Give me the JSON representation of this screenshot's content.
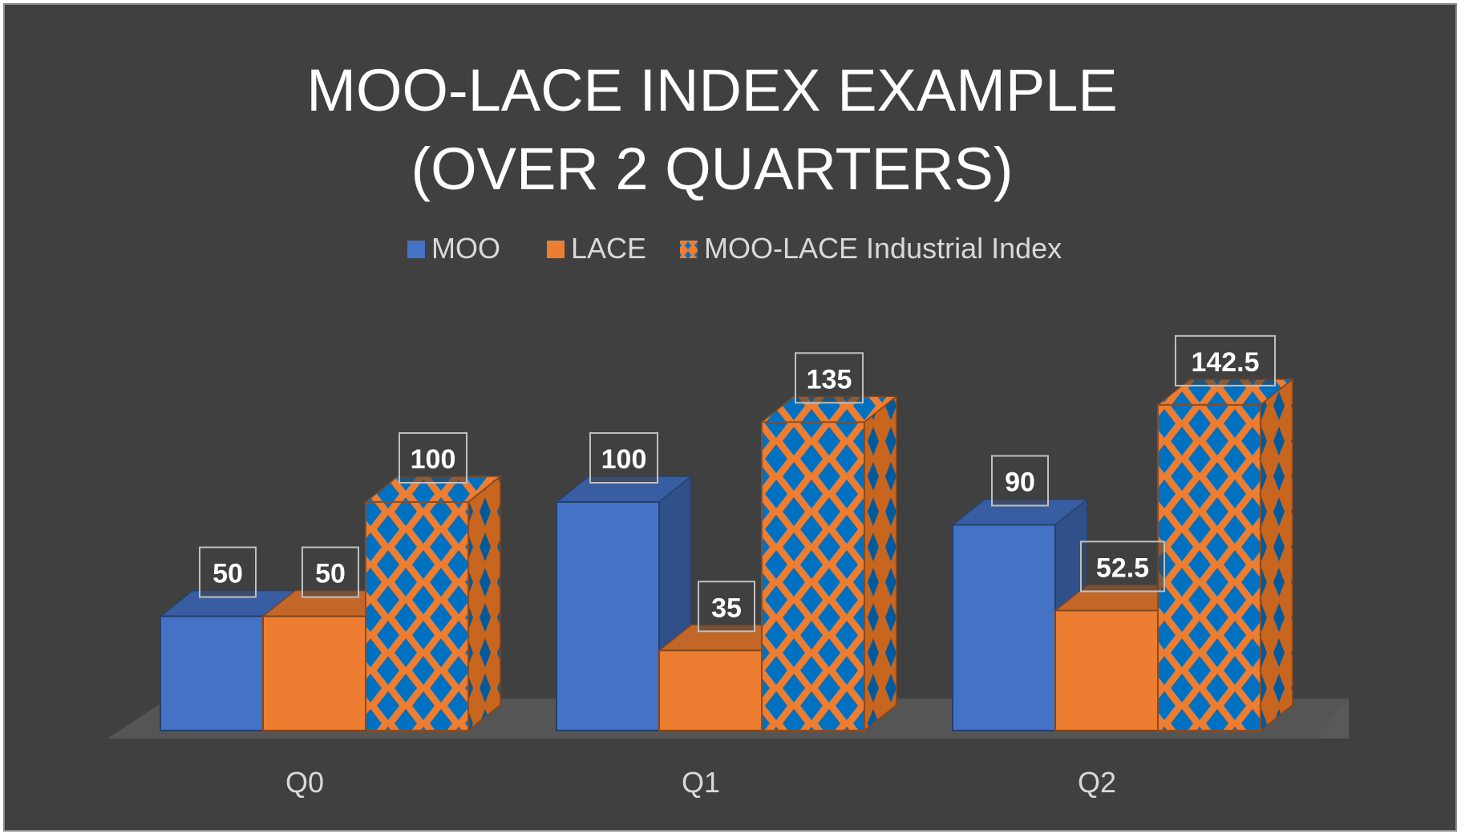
{
  "chart_data": {
    "type": "bar",
    "title_lines": [
      "MOO-LACE INDEX EXAMPLE",
      "(OVER 2 QUARTERS)"
    ],
    "categories": [
      "Q0",
      "Q1",
      "Q2"
    ],
    "series": [
      {
        "name": "MOO",
        "values": [
          50,
          100,
          90
        ],
        "labels": [
          "50",
          "100",
          "90"
        ],
        "color": "#4472c4",
        "pattern": "solid"
      },
      {
        "name": "LACE",
        "values": [
          50,
          35,
          52.5
        ],
        "labels": [
          "50",
          "35",
          "52.5"
        ],
        "color": "#ed7d31",
        "pattern": "solid"
      },
      {
        "name": "MOO-LACE Industrial Index",
        "values": [
          100,
          135,
          142.5
        ],
        "labels": [
          "100",
          "135",
          "142.5"
        ],
        "color": "#ed7d31",
        "pattern_color": "#0070c0",
        "pattern": "diamond"
      }
    ],
    "ylim": [
      0,
      150
    ],
    "xlabel": "",
    "ylabel": "",
    "grid": false,
    "legend_position": "top",
    "style": "3d-clustered-column",
    "data_labels": true,
    "colors": {
      "background": "#404040",
      "text": "#d9d9d9",
      "title": "#ffffff",
      "floor": "#595959"
    }
  }
}
